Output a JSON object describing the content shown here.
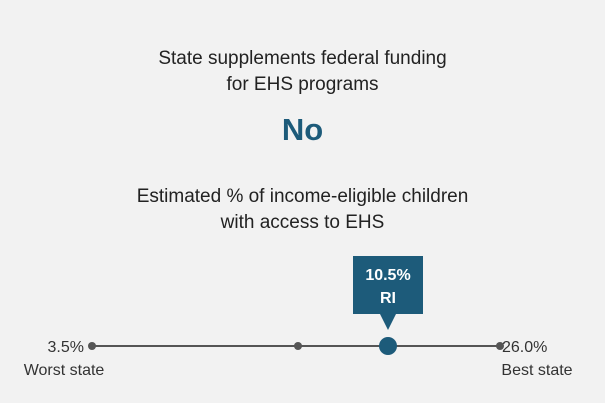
{
  "supplement": {
    "title_line1": "State supplements federal funding",
    "title_line2": "for EHS programs",
    "answer": "No"
  },
  "access": {
    "title_line1": "Estimated % of income-eligible children",
    "title_line2": "with access to EHS"
  },
  "colors": {
    "accent": "#1d5b7a",
    "line": "#555555",
    "background": "#f2f2f2"
  },
  "chart_data": {
    "type": "scatter",
    "title": "Estimated % of income-eligible children with access to EHS",
    "xlim": [
      3.5,
      26.0
    ],
    "min": {
      "value": 3.5,
      "value_label": "3.5%",
      "label": "Worst state"
    },
    "max": {
      "value": 26.0,
      "value_label": "26.0%",
      "label": "Best state"
    },
    "median": {
      "value": 10.5
    },
    "state": {
      "value": 10.5,
      "value_label": "10.5%",
      "name": "RI"
    }
  }
}
